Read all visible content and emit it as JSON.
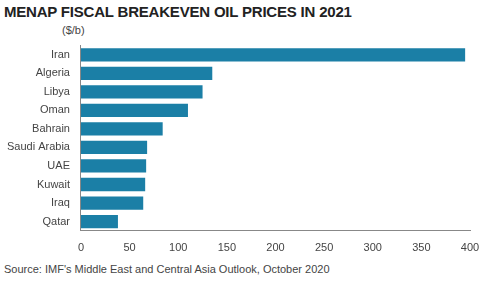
{
  "chart_data": {
    "type": "bar",
    "title": "MENAP FISCAL BREAKEVEN OIL PRICES IN 2021",
    "xlabel": "($/b)",
    "source": "Source: IMF's Middle East and Central Asia Outlook, October 2020",
    "orientation": "horizontal",
    "categories": [
      "Iran",
      "Algeria",
      "Libya",
      "Oman",
      "Bahrain",
      "Saudi Arabia",
      "UAE",
      "Kuwait",
      "Iraq",
      "Qatar"
    ],
    "values": [
      395,
      135,
      125,
      110,
      84,
      68,
      67,
      66,
      64,
      38
    ],
    "color": "#1b7fa6",
    "xlim": [
      0,
      400
    ],
    "xticks": [
      0,
      50,
      100,
      150,
      200,
      250,
      300,
      350,
      400
    ],
    "grid": false
  }
}
